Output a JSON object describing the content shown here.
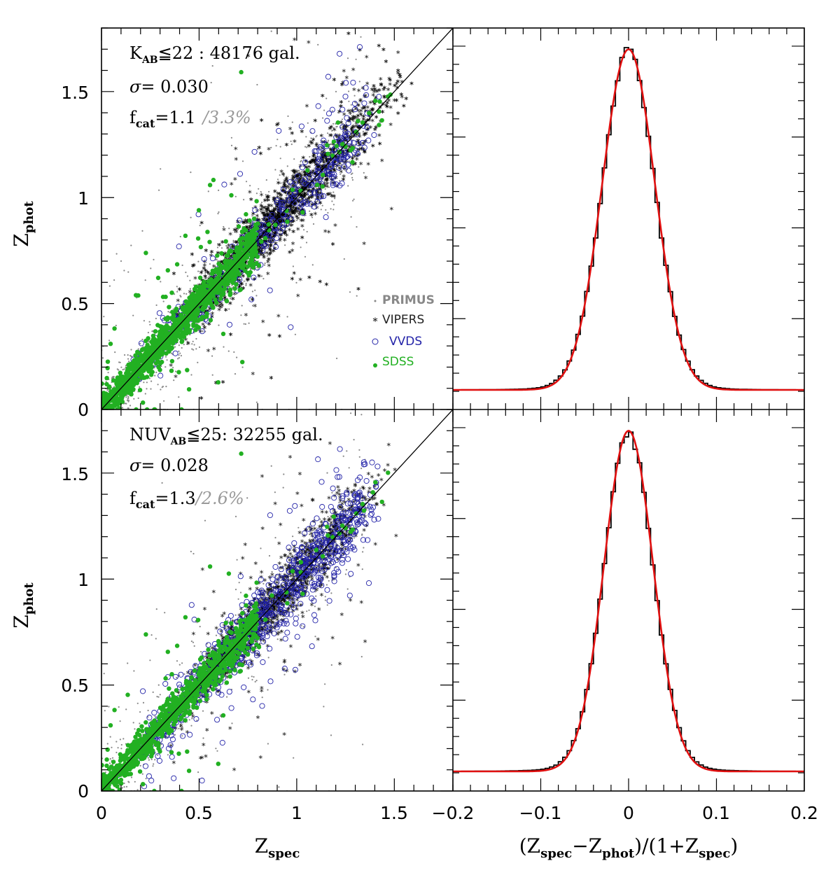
{
  "chart_data": [
    {
      "type": "scatter",
      "panel": "top-left",
      "x_range": [
        0,
        1.8
      ],
      "y_range": [
        0,
        1.8
      ],
      "yticks": [
        "0",
        "0.5",
        "1",
        "1.5"
      ],
      "ylabel": "Z",
      "ylabel_sub": "phot",
      "annotation": {
        "line1_main": "K",
        "line1_sub": "AB",
        "line1_rest": "≦22 : 48176 gal.",
        "sigma_symbol": "σ",
        "sigma_text": "=   0.030",
        "fcat_main": "f",
        "fcat_sub": "cat",
        "fcat_value": "=1.1",
        "fcat_alt": "/3.3%"
      },
      "legend": [
        {
          "label": "PRIMUS",
          "marker": "dot",
          "color": "#888888"
        },
        {
          "label": "VIPERS",
          "marker": "star",
          "color": "#000000"
        },
        {
          "label": "VVDS",
          "marker": "open-circle",
          "color": "#2323a8"
        },
        {
          "label": "SDSS",
          "marker": "filled-circle",
          "color": "#22b022"
        }
      ],
      "one_to_one_line": true
    },
    {
      "type": "histogram",
      "panel": "top-right",
      "x_range": [
        -0.2,
        0.2
      ],
      "bin_width": 0.005,
      "peak_value": 1.0,
      "fit": {
        "type": "gaussian",
        "mu": 0.0,
        "sigma": 0.03,
        "color": "#e01010"
      }
    },
    {
      "type": "scatter",
      "panel": "bottom-left",
      "x_range": [
        0,
        1.8
      ],
      "y_range": [
        0,
        1.8
      ],
      "xticks": [
        "0",
        "0.5",
        "1",
        "1.5"
      ],
      "yticks": [
        "0",
        "0.5",
        "1",
        "1.5"
      ],
      "xlabel": "Z",
      "xlabel_sub": "spec",
      "ylabel": "Z",
      "ylabel_sub": "phot",
      "annotation": {
        "line1_main": "NUV",
        "line1_sub": "AB",
        "line1_rest": "≦25: 32255 gal.",
        "sigma_symbol": "σ",
        "sigma_text": "=   0.028",
        "fcat_main": "f",
        "fcat_sub": "cat",
        "fcat_value": "=1.3",
        "fcat_alt": "/2.6%"
      },
      "one_to_one_line": true
    },
    {
      "type": "histogram",
      "panel": "bottom-right",
      "x_range": [
        -0.2,
        0.2
      ],
      "bin_width": 0.005,
      "peak_value": 1.0,
      "xticks": [
        "−0.2",
        "−0.1",
        "0",
        "0.1",
        "0.2"
      ],
      "xlabel_parts": [
        "(Z",
        "spec",
        "−Z",
        "phot",
        ")/(1+Z",
        "spec",
        ")"
      ],
      "fit": {
        "type": "gaussian",
        "mu": 0.0,
        "sigma": 0.028,
        "color": "#e01010"
      }
    }
  ],
  "colors": {
    "primus": "#888888",
    "vipers": "#000000",
    "vvds": "#2323a8",
    "sdss": "#22b022",
    "fit": "#e01010",
    "fcat_alt": "#999999"
  }
}
